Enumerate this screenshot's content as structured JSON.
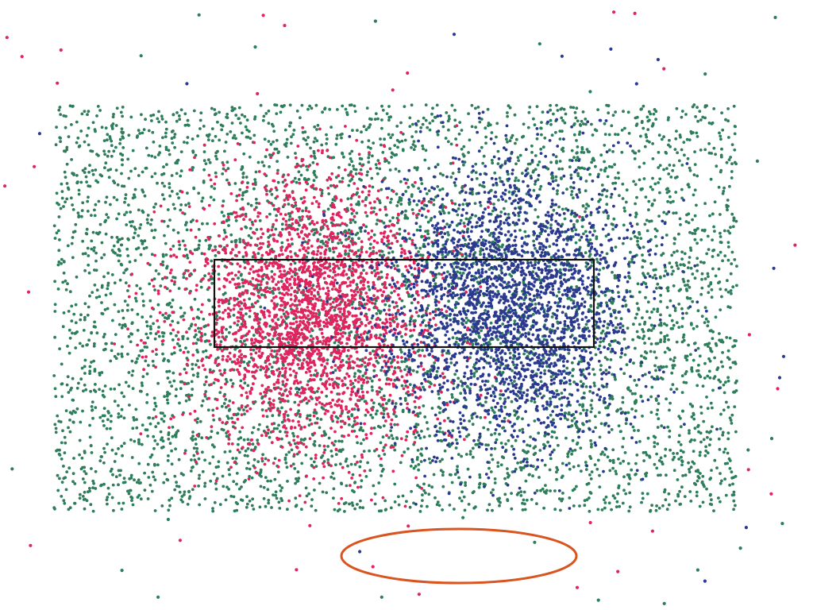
{
  "colors": {
    "background": "#ffffff",
    "green_particles": "#2e7d5b",
    "red_particles": "#e0245e",
    "blue_particles": "#2b3a8f",
    "rectangle_outline": "#111111",
    "ellipse_outline": "#d9541e"
  }
}
